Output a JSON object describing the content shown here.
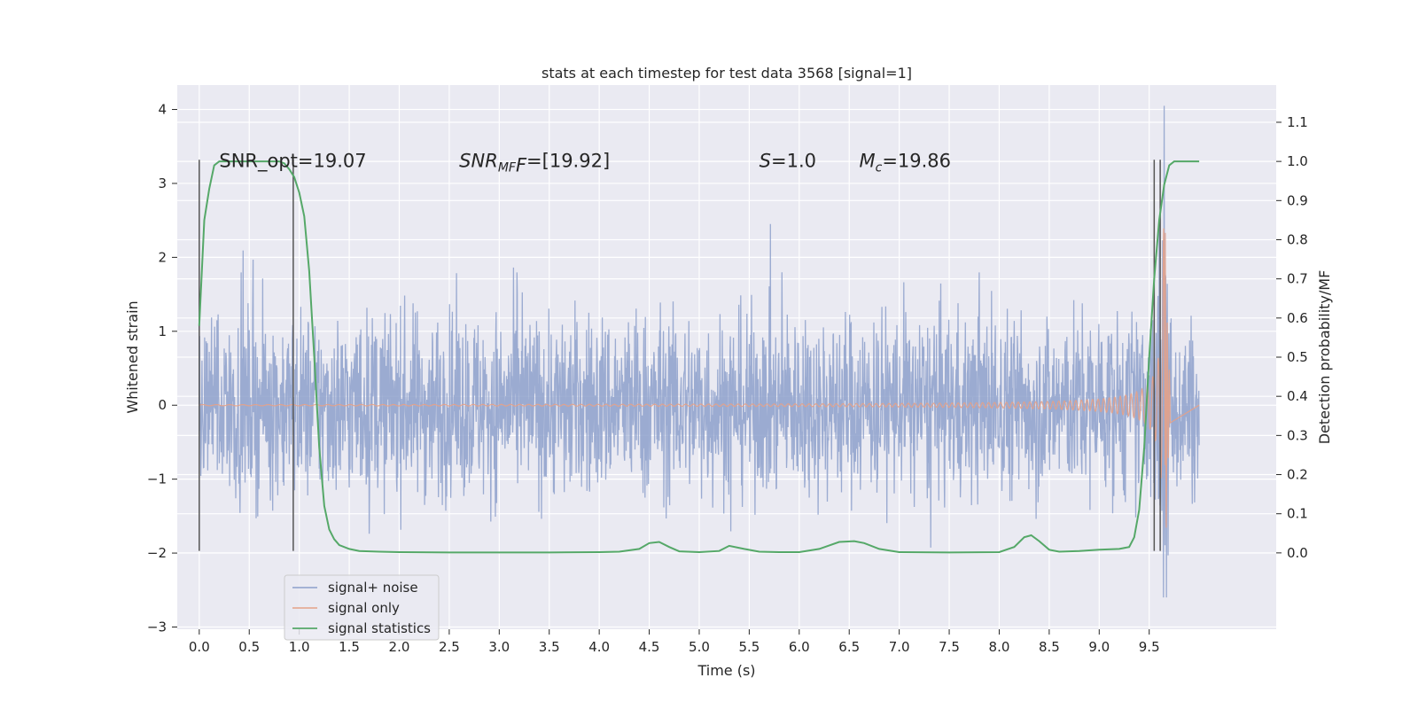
{
  "chart_data": {
    "type": "line",
    "title": "stats at each timestep for test data 3568 [signal=1]",
    "xlabel": "Time (s)",
    "ylabel": "Whitened strain",
    "y2label": "Detection probability/MF",
    "xlim": [
      -0.22,
      10.77
    ],
    "ylim": [
      -3.03,
      4.33
    ],
    "y2lim": [
      -0.195,
      1.195
    ],
    "xticks": [
      0.0,
      0.5,
      1.0,
      1.5,
      2.0,
      2.5,
      3.0,
      3.5,
      4.0,
      4.5,
      5.0,
      5.5,
      6.0,
      6.5,
      7.0,
      7.5,
      8.0,
      8.5,
      9.0,
      9.5
    ],
    "xtick_labels": [
      "0.0",
      "0.5",
      "1.0",
      "1.5",
      "2.0",
      "2.5",
      "3.0",
      "3.5",
      "4.0",
      "4.5",
      "5.0",
      "5.5",
      "6.0",
      "6.5",
      "7.0",
      "7.5",
      "8.0",
      "8.5",
      "9.0",
      "9.5"
    ],
    "yticks": [
      4,
      3,
      2,
      1,
      0,
      -1,
      -2,
      -3
    ],
    "ytick_labels": [
      "4",
      "3",
      "2",
      "1",
      "0",
      "−1",
      "−2",
      "−3"
    ],
    "y2ticks": [
      1.1,
      1.0,
      0.9,
      0.8,
      0.7,
      0.6,
      0.5,
      0.4,
      0.3,
      0.2,
      0.1,
      0.0
    ],
    "y2tick_labels": [
      "1.1",
      "1.0",
      "0.9",
      "0.8",
      "0.7",
      "0.6",
      "0.5",
      "0.4",
      "0.3",
      "0.2",
      "0.1",
      "0.0"
    ],
    "grid": true,
    "legend_position": "lower-left",
    "series": [
      {
        "name": "signal+ noise",
        "color": "#8da0cb",
        "kind": "noisy strain, duration 0–10 s, typical amplitude ±1.2, peak 4.05 at 9.65 s",
        "t_start": 0.0,
        "t_end": 10.0,
        "envelope": 1.2,
        "peak_t": 9.65,
        "peak_value": 4.05
      },
      {
        "name": "signal only",
        "color": "#e5a187",
        "kind": "chirp, amplitude grows toward merger",
        "t_start": 0.0,
        "t_end": 10.0,
        "merger_t": 9.66,
        "max_value": 2.6,
        "min_value": -2.55
      },
      {
        "name": "signal statistics",
        "color": "#55a868",
        "axis": "right",
        "x": [
          0.0,
          0.05,
          0.1,
          0.15,
          0.2,
          0.3,
          0.5,
          0.7,
          0.8,
          0.85,
          0.9,
          0.95,
          1.0,
          1.05,
          1.1,
          1.15,
          1.2,
          1.25,
          1.3,
          1.35,
          1.4,
          1.5,
          1.6,
          1.8,
          2.0,
          2.5,
          3.0,
          3.5,
          4.0,
          4.2,
          4.4,
          4.5,
          4.6,
          4.7,
          4.8,
          5.0,
          5.2,
          5.3,
          5.45,
          5.6,
          5.8,
          6.0,
          6.2,
          6.4,
          6.55,
          6.65,
          6.8,
          7.0,
          7.5,
          8.0,
          8.15,
          8.25,
          8.32,
          8.4,
          8.5,
          8.6,
          8.8,
          9.0,
          9.2,
          9.3,
          9.35,
          9.4,
          9.45,
          9.5,
          9.55,
          9.6,
          9.65,
          9.7,
          9.75,
          9.8,
          9.9,
          10.0
        ],
        "values": [
          0.58,
          0.85,
          0.93,
          0.99,
          1.0,
          1.0,
          1.0,
          1.0,
          1.0,
          0.995,
          0.98,
          0.96,
          0.92,
          0.86,
          0.72,
          0.5,
          0.27,
          0.12,
          0.06,
          0.035,
          0.02,
          0.01,
          0.005,
          0.003,
          0.002,
          0.001,
          0.001,
          0.001,
          0.002,
          0.003,
          0.01,
          0.025,
          0.028,
          0.015,
          0.004,
          0.002,
          0.005,
          0.018,
          0.01,
          0.003,
          0.002,
          0.002,
          0.01,
          0.028,
          0.03,
          0.025,
          0.01,
          0.002,
          0.001,
          0.002,
          0.015,
          0.04,
          0.045,
          0.03,
          0.008,
          0.003,
          0.005,
          0.008,
          0.01,
          0.015,
          0.04,
          0.11,
          0.27,
          0.5,
          0.7,
          0.85,
          0.94,
          0.99,
          1.0,
          1.0,
          1.0,
          1.0
        ]
      }
    ],
    "vertical_lines": [
      {
        "x": 0.0,
        "y_from": -1.97,
        "y_to": 3.32,
        "color": "#555555"
      },
      {
        "x": 0.94,
        "y_from": -1.97,
        "y_to": 3.32,
        "color": "#555555"
      },
      {
        "x": 9.55,
        "y_from": -1.97,
        "y_to": 3.32,
        "color": "#555555"
      },
      {
        "x": 9.61,
        "y_from": -1.97,
        "y_to": 3.32,
        "color": "#555555"
      }
    ],
    "annotations": [
      {
        "x": 0.2,
        "y": 3.2,
        "text": "SNR_opt=19.07"
      },
      {
        "x": 2.6,
        "y": 3.2,
        "prefix": "SNR",
        "sub": "MF",
        "text": "F=[19.92]",
        "math": true
      },
      {
        "x": 5.6,
        "y": 3.2,
        "prefix": "S",
        "text": "=1.0",
        "math": true
      },
      {
        "x": 6.6,
        "y": 3.2,
        "prefix": "M",
        "sub": "c",
        "text": "=19.86",
        "math": true
      }
    ]
  }
}
